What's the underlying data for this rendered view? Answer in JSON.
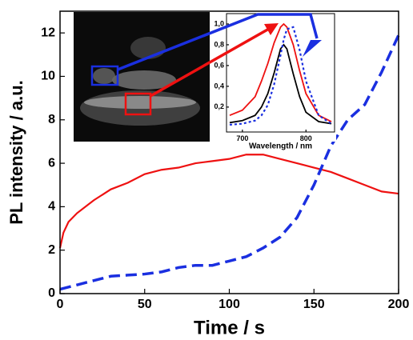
{
  "chart_data": [
    {
      "type": "line",
      "xlabel": "Time / s",
      "ylabel": "PL intensity / a.u.",
      "xlim": [
        0,
        200
      ],
      "xticks": [
        0,
        50,
        100,
        150,
        200
      ],
      "ylim": [
        0,
        13
      ],
      "yticks": [
        0,
        2,
        4,
        6,
        8,
        10,
        12
      ],
      "series": [
        {
          "color": "#ee1111",
          "style": "solid",
          "x": [
            0,
            2,
            5,
            10,
            20,
            30,
            40,
            50,
            60,
            70,
            80,
            90,
            100,
            110,
            120,
            130,
            140,
            150,
            160,
            170,
            180,
            190,
            200
          ],
          "values": [
            2.1,
            2.8,
            3.3,
            3.7,
            4.3,
            4.8,
            5.1,
            5.5,
            5.7,
            5.8,
            6.0,
            6.1,
            6.2,
            6.4,
            6.4,
            6.2,
            6.0,
            5.8,
            5.6,
            5.3,
            5.0,
            4.7,
            4.6
          ]
        },
        {
          "color": "#1a2fe0",
          "style": "dashed",
          "x": [
            0,
            10,
            20,
            30,
            40,
            50,
            60,
            70,
            80,
            90,
            100,
            110,
            120,
            130,
            140,
            150,
            160,
            170,
            180,
            190,
            200
          ],
          "values": [
            0.2,
            0.4,
            0.6,
            0.8,
            0.85,
            0.9,
            1.0,
            1.2,
            1.3,
            1.3,
            1.5,
            1.7,
            2.1,
            2.6,
            3.5,
            5.0,
            6.8,
            8.0,
            8.7,
            10.2,
            11.9
          ]
        }
      ]
    },
    {
      "type": "line",
      "xlabel": "Wavelength / nm",
      "xlim": [
        675,
        845
      ],
      "xticks": [
        700,
        800
      ],
      "ylim": [
        -0.04,
        1.1
      ],
      "yticks": [
        {
          "value": 0.2,
          "label": "0,2"
        },
        {
          "value": 0.4,
          "label": "0,4"
        },
        {
          "value": 0.6,
          "label": "0,6"
        },
        {
          "value": 0.8,
          "label": "0,8"
        },
        {
          "value": 1.0,
          "label": "1,0"
        }
      ],
      "series": [
        {
          "color": "#ee1111",
          "style": "solid",
          "x": [
            680,
            700,
            720,
            730,
            740,
            750,
            760,
            765,
            770,
            780,
            790,
            800,
            820,
            840
          ],
          "values": [
            0.12,
            0.17,
            0.3,
            0.45,
            0.62,
            0.82,
            0.97,
            1.0,
            0.97,
            0.8,
            0.55,
            0.33,
            0.12,
            0.06
          ]
        },
        {
          "color": "#000000",
          "style": "solid",
          "x": [
            680,
            700,
            720,
            730,
            740,
            750,
            760,
            765,
            770,
            780,
            790,
            800,
            820,
            840
          ],
          "values": [
            0.05,
            0.07,
            0.12,
            0.2,
            0.33,
            0.53,
            0.76,
            0.8,
            0.76,
            0.52,
            0.3,
            0.15,
            0.06,
            0.04
          ]
        },
        {
          "color": "#1a2fe0",
          "style": "dotted",
          "x": [
            680,
            700,
            720,
            730,
            740,
            750,
            760,
            765,
            770,
            780,
            790,
            800,
            820,
            840
          ],
          "values": [
            0.03,
            0.04,
            0.07,
            0.12,
            0.22,
            0.42,
            0.7,
            0.85,
            0.95,
            0.97,
            0.75,
            0.45,
            0.12,
            0.04
          ]
        }
      ]
    }
  ]
}
